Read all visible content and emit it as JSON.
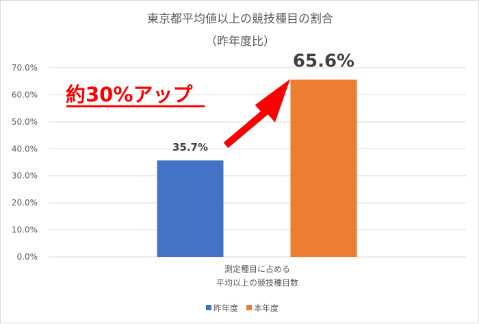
{
  "chart_data": {
    "type": "bar",
    "title": "東京都平均値以上の競技種目の割合",
    "subtitle": "（昨年度比）",
    "categories": [
      "測定種目に占める",
      "平均以上の競技種目数"
    ],
    "y_ticks": [
      "0.0%",
      "10.0%",
      "20.0%",
      "30.0%",
      "40.0%",
      "50.0%",
      "60.0%",
      "70.0%"
    ],
    "ylim": [
      0,
      70
    ],
    "grid": true,
    "legend_position": "bottom",
    "series": [
      {
        "name": "昨年度",
        "value": 35.7,
        "label": "35.7%",
        "color": "#4472c4"
      },
      {
        "name": "本年度",
        "value": 65.6,
        "label": "65.6%",
        "color": "#ed7d31"
      }
    ],
    "annotation": {
      "text": "約30%アップ",
      "color": "#ff0000"
    }
  }
}
